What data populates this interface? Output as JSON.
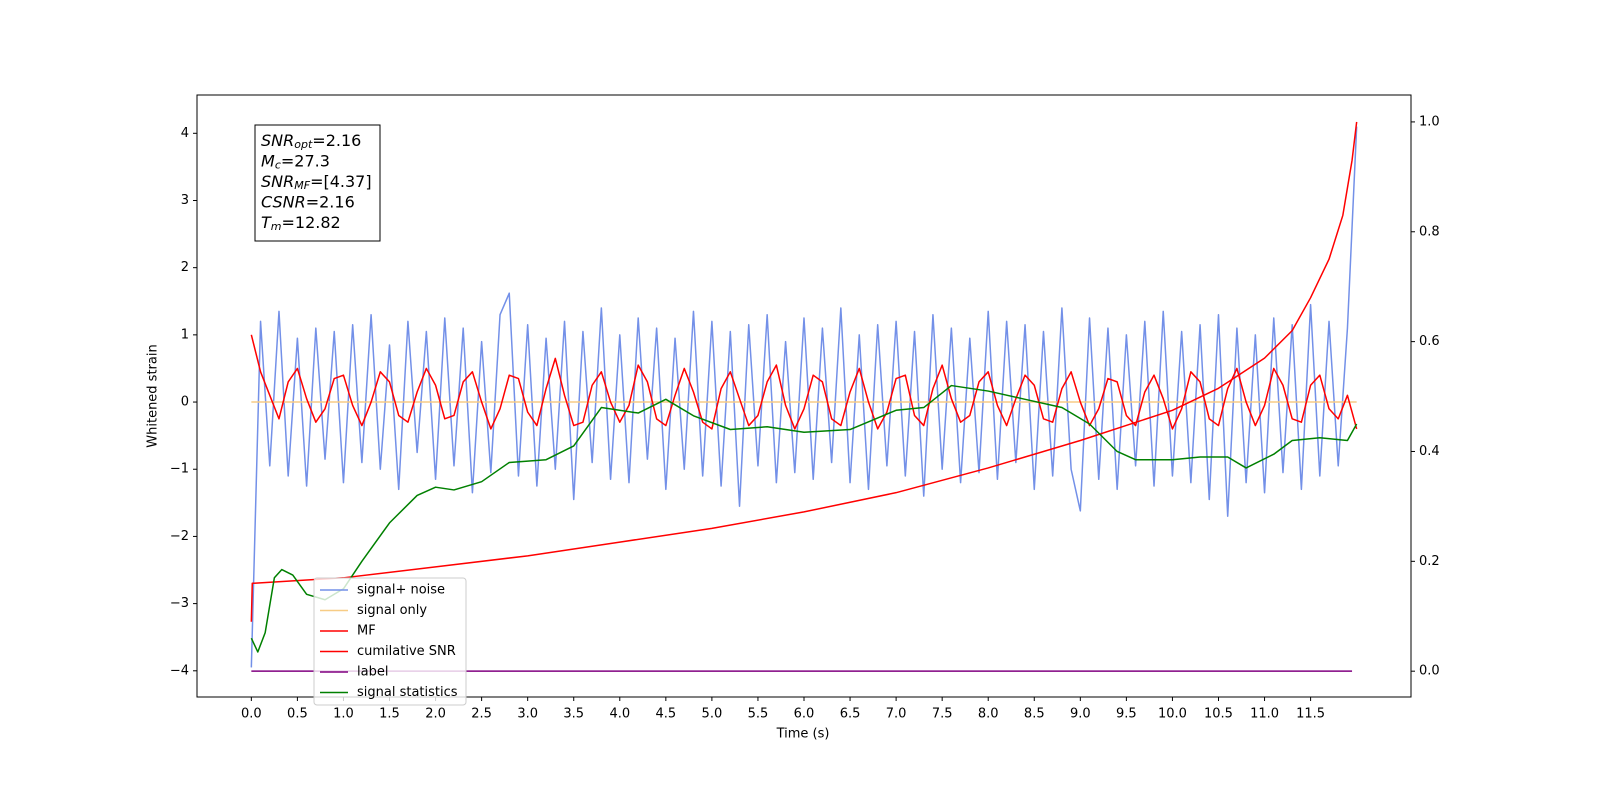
{
  "chart_data": {
    "type": "line",
    "xlabel": "Time (s)",
    "ylabel": "Whitened strain",
    "xlim": [
      -0.59,
      12.59
    ],
    "ylim": [
      -4.39,
      4.57
    ],
    "y2lim": [
      -0.047,
      1.049
    ],
    "xticks": [
      {
        "value": 0,
        "label": "0.0"
      },
      0.5,
      {
        "value": 1,
        "label": "1.0"
      },
      1.5,
      {
        "value": 2,
        "label": "2.0"
      },
      2.5,
      {
        "value": 3,
        "label": "3.0"
      },
      3.5,
      {
        "value": 4,
        "label": "4.0"
      },
      4.5,
      {
        "value": 5,
        "label": "5.0"
      },
      5.5,
      {
        "value": 6,
        "label": "6.0"
      },
      6.5,
      {
        "value": 7,
        "label": "7.0"
      },
      7.5,
      {
        "value": 8,
        "label": "8.0"
      },
      8.5,
      {
        "value": 9,
        "label": "9.0"
      },
      9.5,
      {
        "value": 10,
        "label": "10.0"
      },
      10.5,
      {
        "value": 11,
        "label": "11.0"
      },
      11.5
    ],
    "yticks": [
      {
        "value": -4,
        "label": "−4"
      },
      {
        "value": -3,
        "label": "−3"
      },
      {
        "value": -2,
        "label": "−2"
      },
      {
        "value": -1,
        "label": "−1"
      },
      0,
      1,
      2,
      3,
      4
    ],
    "y2ticks": [
      {
        "value": 0,
        "label": "0.0"
      },
      0.2,
      0.4,
      0.6,
      0.8,
      {
        "value": 1,
        "label": "1.0"
      }
    ],
    "grid": false,
    "legend_loc": "lower left",
    "annotation": [
      {
        "symbol": "SNR",
        "sub": "opt",
        "rest": "=2.16"
      },
      {
        "symbol": "M",
        "sub": "c",
        "rest": "=27.3"
      },
      {
        "symbol": "SNR",
        "sub": "MF",
        "rest": "=[4.37]"
      },
      {
        "symbol": "CSNR",
        "rest": "=2.16"
      },
      {
        "symbol": "T",
        "sub": "m",
        "rest": "=12.82"
      }
    ],
    "x": [
      0,
      0.1,
      0.2,
      0.3,
      0.4,
      0.5,
      0.6,
      0.7,
      0.8,
      0.9,
      1,
      1.1,
      1.2,
      1.3,
      1.4,
      1.5,
      1.6,
      1.7,
      1.8,
      1.9,
      2,
      2.1,
      2.2,
      2.3,
      2.4,
      2.5,
      2.6,
      2.7,
      2.8,
      2.9,
      3,
      3.1,
      3.2,
      3.3,
      3.4,
      3.5,
      3.6,
      3.7,
      3.8,
      3.9,
      4,
      4.1,
      4.2,
      4.3,
      4.4,
      4.5,
      4.6,
      4.7,
      4.8,
      4.9,
      5,
      5.1,
      5.2,
      5.3,
      5.4,
      5.5,
      5.6,
      5.7,
      5.8,
      5.9,
      6,
      6.1,
      6.2,
      6.3,
      6.4,
      6.5,
      6.6,
      6.7,
      6.8,
      6.9,
      7,
      7.1,
      7.2,
      7.3,
      7.4,
      7.5,
      7.6,
      7.7,
      7.8,
      7.9,
      8,
      8.1,
      8.2,
      8.3,
      8.4,
      8.5,
      8.6,
      8.7,
      8.8,
      8.9,
      9,
      9.1,
      9.2,
      9.3,
      9.4,
      9.5,
      9.6,
      9.7,
      9.8,
      9.9,
      10,
      10.1,
      10.2,
      10.3,
      10.4,
      10.5,
      10.6,
      10.7,
      10.8,
      10.9,
      11,
      11.1,
      11.2,
      11.3,
      11.4,
      11.5,
      11.6,
      11.7,
      11.8,
      11.9,
      12
    ],
    "series": [
      {
        "name": "signal+ noise",
        "color": "#7390e8",
        "values": [
          -3.95,
          1.2,
          -0.95,
          1.35,
          -1.1,
          0.95,
          -1.25,
          1.1,
          -0.85,
          1.05,
          -1.2,
          1.15,
          -0.9,
          1.3,
          -1.0,
          0.85,
          -1.3,
          1.2,
          -0.75,
          1.05,
          -1.15,
          1.25,
          -0.95,
          1.1,
          -1.35,
          0.9,
          -1.05,
          1.3,
          1.62,
          -1.1,
          1.15,
          -1.25,
          0.95,
          -1.0,
          1.2,
          -1.45,
          1.05,
          -0.9,
          1.4,
          -1.15,
          1.0,
          -1.2,
          1.25,
          -0.85,
          1.1,
          -1.3,
          0.95,
          -1.0,
          1.35,
          -1.1,
          1.2,
          -1.25,
          1.05,
          -1.55,
          1.15,
          -0.95,
          1.3,
          -1.2,
          0.9,
          -1.05,
          1.25,
          -1.15,
          1.1,
          -0.9,
          1.4,
          -1.2,
          1.0,
          -1.3,
          1.15,
          -0.95,
          1.2,
          -1.1,
          1.05,
          -1.4,
          1.3,
          -1.0,
          1.1,
          -1.2,
          0.95,
          -1.05,
          1.35,
          -1.15,
          1.2,
          -0.9,
          1.15,
          -1.3,
          1.05,
          -1.1,
          1.4,
          -1.0,
          -1.62,
          1.25,
          -1.15,
          1.1,
          -1.3,
          1.0,
          -0.95,
          1.2,
          -1.25,
          1.35,
          -1.1,
          1.05,
          -1.2,
          1.15,
          -1.45,
          1.3,
          -1.7,
          1.1,
          -1.2,
          1.0,
          -1.35,
          1.25,
          -1.05,
          1.15,
          -1.3,
          1.45,
          -1.1,
          1.2,
          -0.95,
          1.1,
          4.1
        ]
      },
      {
        "name": "signal only",
        "color": "#f7cc85",
        "x": [
          0,
          12
        ],
        "values": [
          0,
          0
        ]
      },
      {
        "name": "MF",
        "color": "#ff0000",
        "values": [
          1.0,
          0.45,
          0.1,
          -0.25,
          0.3,
          0.5,
          0.05,
          -0.3,
          -0.1,
          0.35,
          0.4,
          -0.05,
          -0.35,
          0.0,
          0.45,
          0.3,
          -0.2,
          -0.3,
          0.15,
          0.5,
          0.25,
          -0.25,
          -0.2,
          0.3,
          0.45,
          0.0,
          -0.4,
          -0.1,
          0.4,
          0.35,
          -0.15,
          -0.35,
          0.2,
          0.65,
          0.1,
          -0.35,
          -0.3,
          0.25,
          0.45,
          0.0,
          -0.3,
          -0.05,
          0.55,
          0.3,
          -0.25,
          -0.35,
          0.1,
          0.5,
          0.15,
          -0.3,
          -0.4,
          0.2,
          0.45,
          0.05,
          -0.35,
          -0.2,
          0.3,
          0.55,
          -0.05,
          -0.4,
          -0.1,
          0.4,
          0.3,
          -0.25,
          -0.35,
          0.15,
          0.5,
          0.0,
          -0.4,
          -0.15,
          0.35,
          0.4,
          -0.2,
          -0.35,
          0.2,
          0.55,
          0.05,
          -0.3,
          -0.2,
          0.3,
          0.45,
          -0.05,
          -0.35,
          0.05,
          0.4,
          0.25,
          -0.25,
          -0.3,
          0.2,
          0.45,
          0.0,
          -0.35,
          -0.1,
          0.35,
          0.3,
          -0.2,
          -0.35,
          0.15,
          0.4,
          0.05,
          -0.4,
          -0.1,
          0.45,
          0.3,
          -0.25,
          -0.35,
          0.2,
          0.5,
          0.0,
          -0.35,
          -0.05,
          0.5,
          0.25,
          -0.25,
          -0.3,
          0.25,
          0.4,
          -0.1,
          -0.25,
          0.1,
          -0.4
        ]
      },
      {
        "name": "cumilative SNR",
        "color": "#ff0000",
        "axis": "y2",
        "x": [
          0,
          0.01,
          1,
          2,
          3,
          4,
          5,
          6,
          7,
          8,
          9,
          10,
          10.5,
          11,
          11.3,
          11.5,
          11.7,
          11.85,
          11.95,
          12
        ],
        "values": [
          0.09,
          0.16,
          0.17,
          0.19,
          0.21,
          0.235,
          0.26,
          0.29,
          0.325,
          0.37,
          0.42,
          0.475,
          0.515,
          0.57,
          0.62,
          0.68,
          0.75,
          0.83,
          0.93,
          1.0
        ]
      },
      {
        "name": "label",
        "color": "#800080",
        "axis": "y2",
        "x": [
          0,
          11.95
        ],
        "values": [
          0,
          0
        ]
      },
      {
        "name": "signal statistics",
        "color": "#008000",
        "axis": "y2",
        "x": [
          0,
          0.07,
          0.15,
          0.25,
          0.33,
          0.45,
          0.6,
          0.8,
          1.0,
          1.2,
          1.5,
          1.8,
          2.0,
          2.2,
          2.5,
          2.8,
          3.2,
          3.5,
          3.8,
          4.2,
          4.5,
          4.8,
          5.2,
          5.6,
          6.0,
          6.5,
          7.0,
          7.3,
          7.6,
          8.0,
          8.4,
          8.8,
          9.1,
          9.4,
          9.6,
          10.0,
          10.3,
          10.6,
          10.8,
          11.1,
          11.3,
          11.6,
          11.9,
          12
        ],
        "values": [
          0.06,
          0.035,
          0.07,
          0.17,
          0.185,
          0.175,
          0.14,
          0.13,
          0.15,
          0.2,
          0.27,
          0.32,
          0.335,
          0.33,
          0.345,
          0.38,
          0.385,
          0.41,
          0.48,
          0.47,
          0.495,
          0.465,
          0.44,
          0.445,
          0.435,
          0.44,
          0.475,
          0.48,
          0.52,
          0.51,
          0.495,
          0.48,
          0.45,
          0.4,
          0.385,
          0.385,
          0.39,
          0.39,
          0.37,
          0.395,
          0.42,
          0.425,
          0.42,
          0.45
        ]
      }
    ]
  }
}
